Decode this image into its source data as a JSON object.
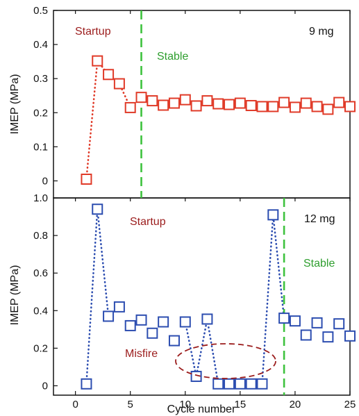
{
  "chart_data": [
    {
      "type": "scatter",
      "xlim": [
        -2,
        25
      ],
      "ylim": [
        -0.05,
        0.5
      ],
      "yticks": [
        "0",
        "0.1",
        "0.2",
        "0.3",
        "0.4",
        "0.5"
      ],
      "ylabel": "IMEP (MPa)",
      "series": [
        {
          "name": "9 mg",
          "color": "#e03a28",
          "marker": "open-square",
          "x": [
            1,
            2,
            3,
            4,
            5,
            6,
            7,
            8,
            9,
            10,
            11,
            12,
            13,
            14,
            15,
            16,
            17,
            18,
            19,
            20,
            21,
            22,
            23,
            24,
            25
          ],
          "y": [
            0.005,
            0.352,
            0.312,
            0.285,
            0.215,
            0.245,
            0.235,
            0.222,
            0.228,
            0.238,
            0.22,
            0.235,
            0.226,
            0.224,
            0.228,
            0.221,
            0.218,
            0.218,
            0.23,
            0.216,
            0.228,
            0.218,
            0.21,
            0.23,
            0.218
          ]
        }
      ],
      "segments": [
        {
          "from": 1,
          "to": 5,
          "style": "dotted"
        }
      ],
      "divider": {
        "x": 6,
        "color": "#3ec23e"
      },
      "annotations": [
        {
          "text": "Startup",
          "color": "#9b1c1c"
        },
        {
          "text": "Stable",
          "color": "#2e9e2e"
        },
        {
          "text": "9 mg",
          "color": "#111111"
        }
      ]
    },
    {
      "type": "scatter",
      "xlim": [
        -2,
        25
      ],
      "ylim": [
        -0.05,
        1.0
      ],
      "xticks": [
        "0",
        "5",
        "10",
        "15",
        "20",
        "25"
      ],
      "yticks": [
        "0",
        "0.2",
        "0.4",
        "0.6",
        "0.8",
        "1.0"
      ],
      "xlabel": "Cycle number",
      "ylabel": "IMEP (MPa)",
      "series": [
        {
          "name": "12 mg",
          "color": "#2c4db0",
          "marker": "open-square",
          "x": [
            1,
            2,
            3,
            4,
            5,
            6,
            7,
            8,
            9,
            10,
            11,
            12,
            13,
            14,
            15,
            16,
            17,
            18,
            19,
            20,
            21,
            22,
            23,
            24,
            25
          ],
          "y": [
            0.01,
            0.94,
            0.37,
            0.42,
            0.32,
            0.35,
            0.28,
            0.34,
            0.24,
            0.34,
            0.05,
            0.355,
            0.01,
            0.01,
            0.01,
            0.01,
            0.01,
            0.91,
            0.36,
            0.345,
            0.27,
            0.335,
            0.26,
            0.33,
            0.265
          ]
        }
      ],
      "segments": [
        {
          "from": 1,
          "to": 3,
          "style": "dotted"
        },
        {
          "from": 10,
          "to": 13,
          "style": "dotted"
        },
        {
          "from": 17,
          "to": 19,
          "style": "dotted"
        }
      ],
      "divider": {
        "x": 19,
        "color": "#3ec23e"
      },
      "annotations": [
        {
          "text": "Startup",
          "color": "#9b1c1c"
        },
        {
          "text": "Stable",
          "color": "#2e9e2e"
        },
        {
          "text": "Misfire",
          "color": "#9b1c1c"
        },
        {
          "text": "12 mg",
          "color": "#111111"
        }
      ],
      "highlight": {
        "shape": "dashed-ellipse",
        "color": "#9b1c1c"
      }
    }
  ]
}
